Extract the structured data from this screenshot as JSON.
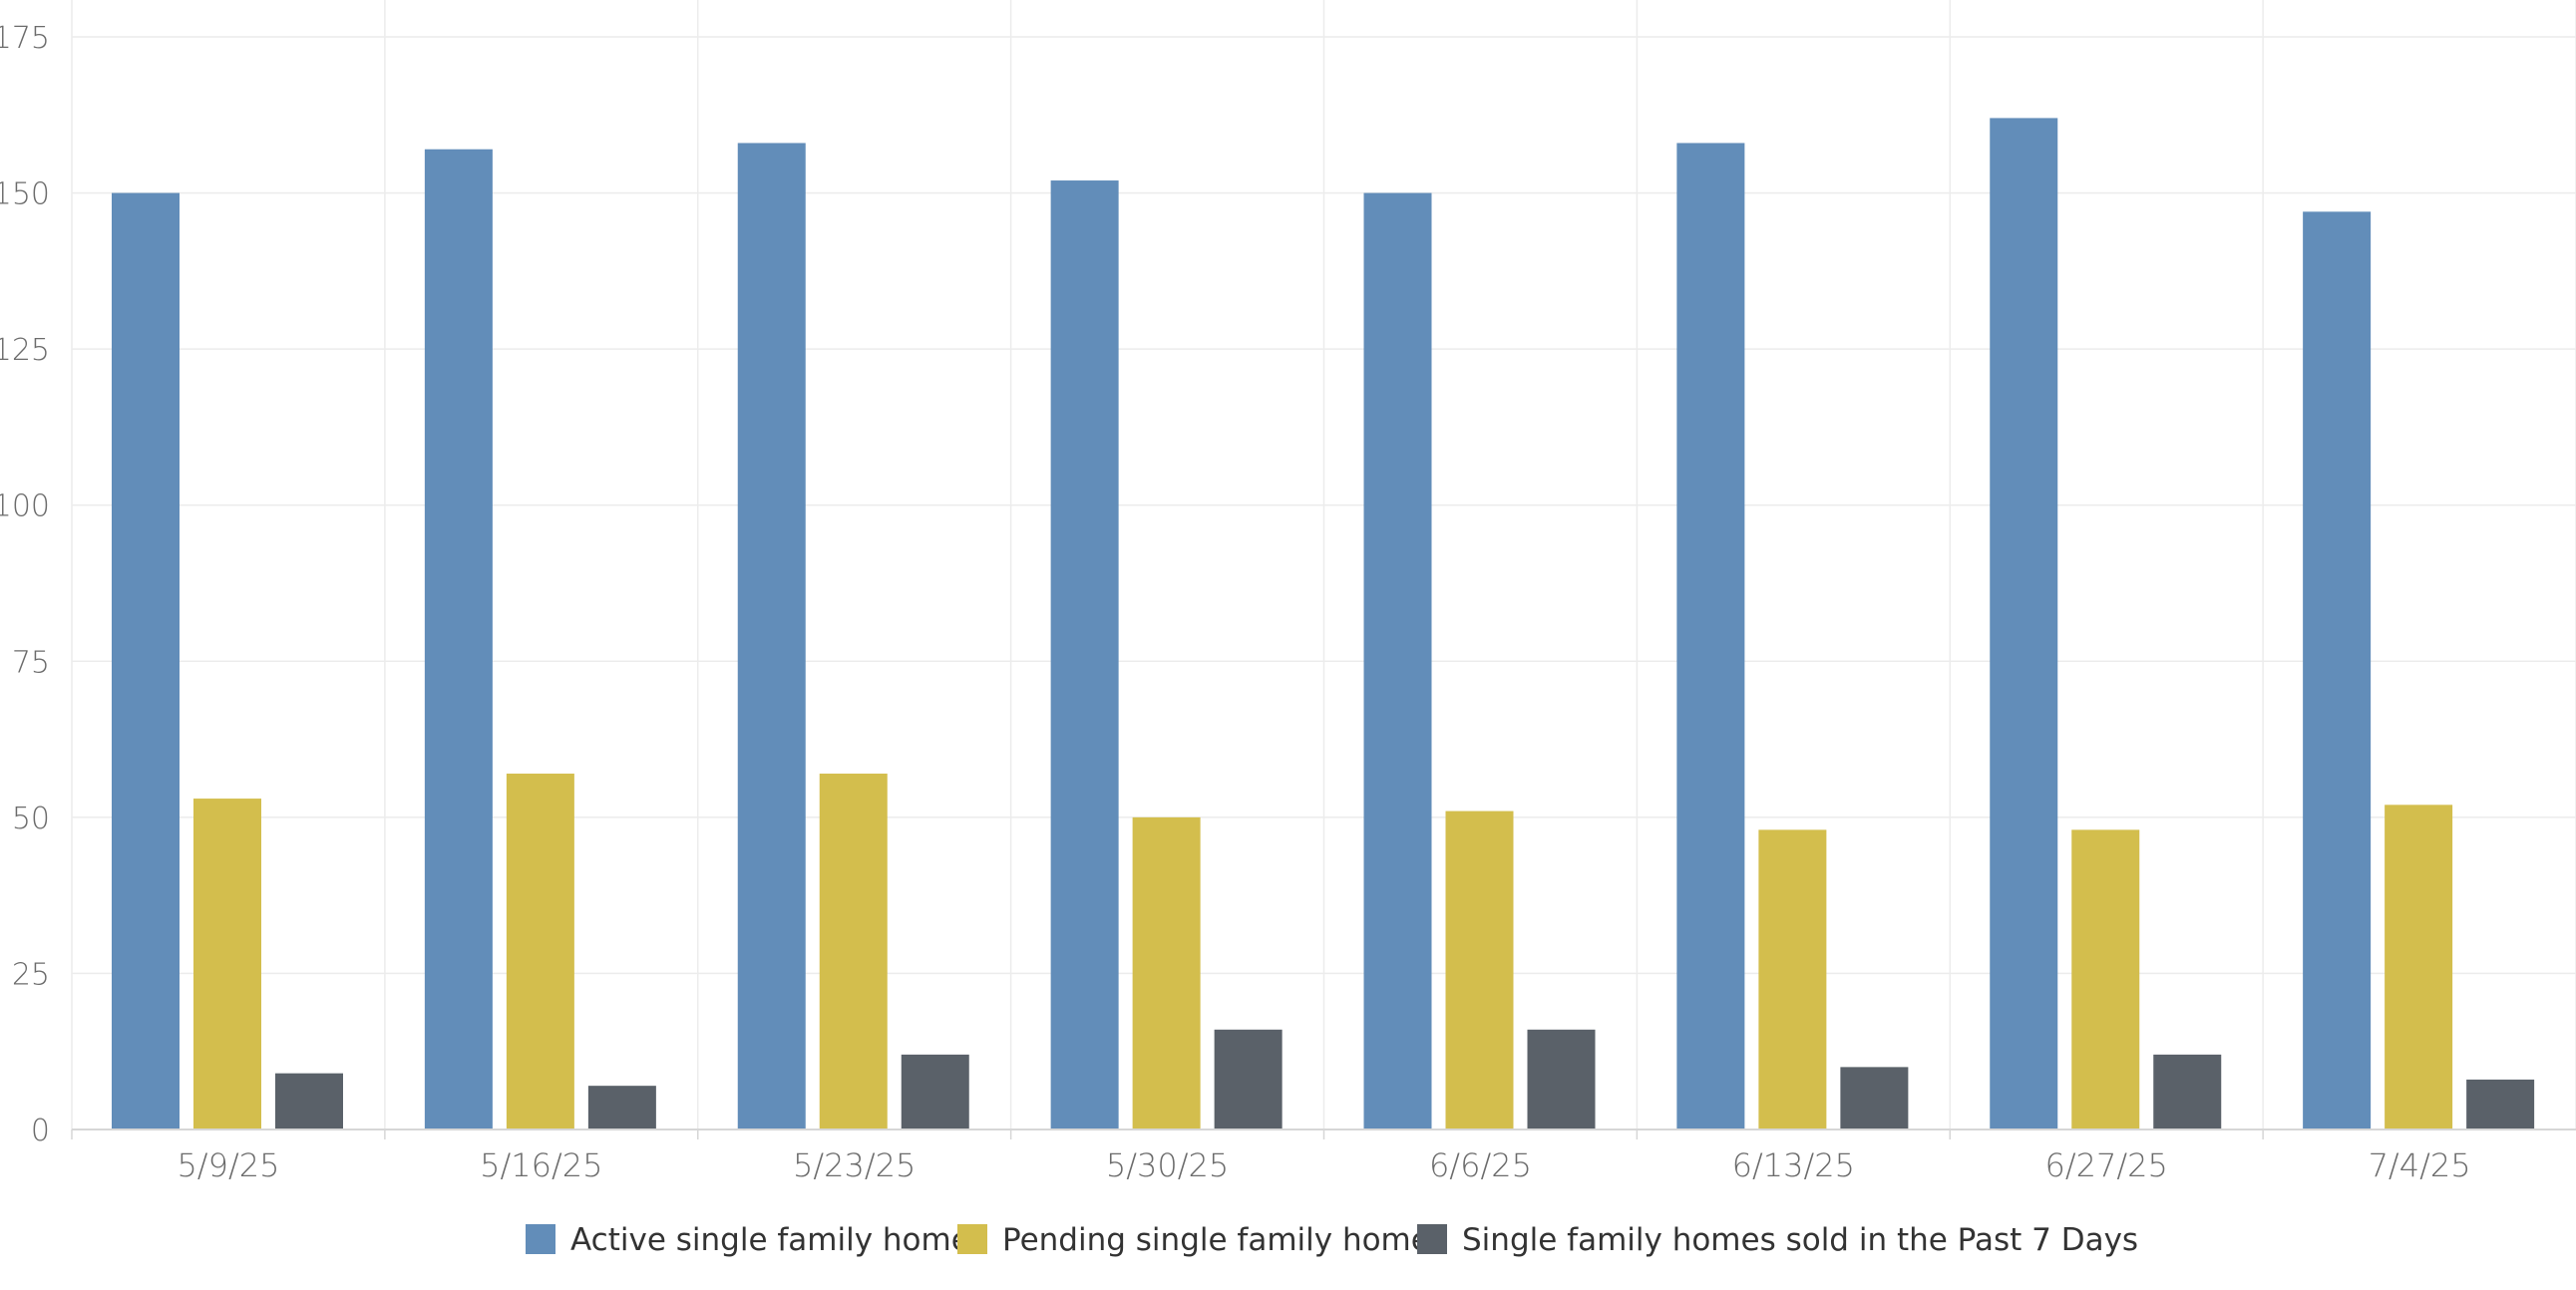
{
  "chart_data": {
    "type": "bar",
    "title": "",
    "xlabel": "",
    "ylabel": "",
    "categories": [
      "5/9/25",
      "5/16/25",
      "5/23/25",
      "5/30/25",
      "6/6/25",
      "6/13/25",
      "6/27/25",
      "7/4/25"
    ],
    "series": [
      {
        "name": "Active single family home",
        "color": "#628db9",
        "values": [
          150,
          157,
          158,
          152,
          150,
          158,
          162,
          147
        ]
      },
      {
        "name": "Pending single family home",
        "color": "#d3be4d",
        "values": [
          53,
          57,
          57,
          50,
          51,
          48,
          48,
          52
        ]
      },
      {
        "name": "Single family homes sold in the Past 7 Days",
        "color": "#5a6169",
        "values": [
          9,
          7,
          12,
          16,
          16,
          10,
          12,
          8
        ]
      }
    ],
    "ylim": [
      0,
      175
    ],
    "yticks": [
      "0",
      "25",
      "50",
      "75",
      "100",
      "125",
      "150",
      "175"
    ],
    "grid": true,
    "legend_position": "bottom-center",
    "colors": {
      "grid": "#ececec",
      "axis": "#d6d6d6",
      "tick_text": "#6b6b6b",
      "legend_text": "#333333"
    }
  }
}
